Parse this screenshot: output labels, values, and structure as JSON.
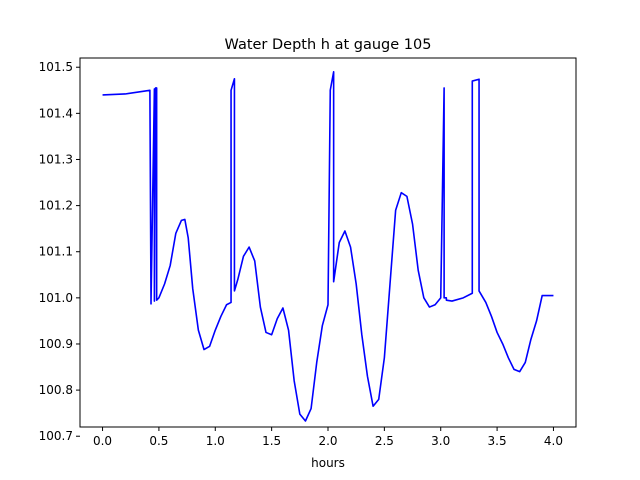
{
  "chart_data": {
    "type": "line",
    "title": "Water Depth h at gauge 105",
    "xlabel": "hours",
    "ylabel": "",
    "xlim": [
      -0.2,
      4.2
    ],
    "ylim": [
      100.72,
      101.52
    ],
    "xticks": [
      0.0,
      0.5,
      1.0,
      1.5,
      2.0,
      2.5,
      3.0,
      3.5,
      4.0
    ],
    "xtick_labels": [
      "0.0",
      "0.5",
      "1.0",
      "1.5",
      "2.0",
      "2.5",
      "3.0",
      "3.5",
      "4.0"
    ],
    "yticks": [
      100.7,
      100.8,
      100.9,
      101.0,
      101.1,
      101.2,
      101.3,
      101.4,
      101.5
    ],
    "ytick_labels": [
      "100.7",
      "100.8",
      "100.9",
      "101.0",
      "101.1",
      "101.2",
      "101.3",
      "101.4",
      "101.5"
    ],
    "grid": false,
    "color": "#0000ff",
    "series": [
      {
        "x": [
          0.0,
          0.2,
          0.42,
          0.43,
          0.43,
          0.46,
          0.46,
          0.47,
          0.48,
          0.48,
          0.5,
          0.55,
          0.6,
          0.65,
          0.7,
          0.73,
          0.76,
          0.8,
          0.85,
          0.9,
          0.95,
          1.0,
          1.05,
          1.1,
          1.14,
          1.14,
          1.17,
          1.17,
          1.2,
          1.25,
          1.3,
          1.35,
          1.4,
          1.45,
          1.5,
          1.55,
          1.6,
          1.65,
          1.7,
          1.75,
          1.8,
          1.85,
          1.9,
          1.95,
          2.0,
          2.02,
          2.02,
          2.05,
          2.05,
          2.1,
          2.15,
          2.2,
          2.25,
          2.3,
          2.35,
          2.4,
          2.45,
          2.5,
          2.55,
          2.6,
          2.65,
          2.7,
          2.75,
          2.8,
          2.85,
          2.9,
          2.95,
          3.0,
          3.03,
          3.03,
          3.05,
          3.05,
          3.1,
          3.2,
          3.28,
          3.28,
          3.34,
          3.34,
          3.4,
          3.45,
          3.5,
          3.55,
          3.6,
          3.65,
          3.7,
          3.75,
          3.8,
          3.85,
          3.9,
          3.95,
          4.0
        ],
        "y": [
          101.44,
          101.442,
          101.45,
          100.987,
          100.99,
          101.453,
          100.993,
          101.455,
          101.455,
          100.995,
          101.0,
          101.03,
          101.07,
          101.14,
          101.168,
          101.17,
          101.13,
          101.02,
          100.93,
          100.888,
          100.895,
          100.93,
          100.96,
          100.985,
          100.99,
          101.45,
          101.475,
          101.015,
          101.04,
          101.09,
          101.11,
          101.08,
          100.98,
          100.925,
          100.92,
          100.955,
          100.978,
          100.93,
          100.82,
          100.748,
          100.733,
          100.76,
          100.86,
          100.94,
          100.985,
          101.445,
          101.45,
          101.49,
          101.035,
          101.12,
          101.145,
          101.11,
          101.03,
          100.92,
          100.83,
          100.765,
          100.78,
          100.87,
          101.03,
          101.19,
          101.228,
          101.22,
          101.16,
          101.06,
          101.0,
          100.98,
          100.985,
          101.0,
          101.455,
          101.0,
          101.0,
          100.995,
          100.993,
          101.0,
          101.01,
          101.47,
          101.474,
          101.015,
          100.99,
          100.96,
          100.925,
          100.9,
          100.87,
          100.845,
          100.84,
          100.86,
          100.91,
          100.95,
          101.005,
          101.005,
          101.005
        ]
      }
    ]
  }
}
